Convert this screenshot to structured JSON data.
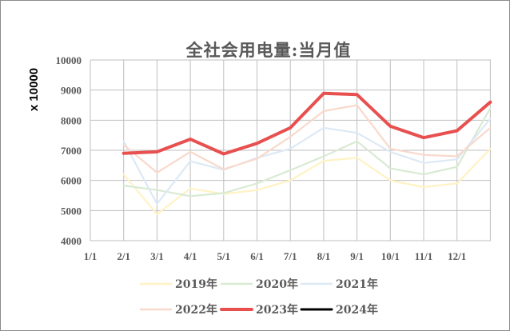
{
  "chart_data": {
    "type": "line",
    "title": "全社会用电量:当月值",
    "ylabel": "x 10000",
    "xlabel": "",
    "categories": [
      "1/1",
      "2/1",
      "3/1",
      "4/1",
      "5/1",
      "6/1",
      "7/1",
      "8/1",
      "9/1",
      "10/1",
      "11/1",
      "12/1"
    ],
    "yticks": [
      "4000",
      "5000",
      "6000",
      "7000",
      "8000",
      "9000",
      "10000"
    ],
    "ylim": [
      4000,
      10000
    ],
    "grid": true,
    "legend_position": "bottom",
    "series": [
      {
        "name": "2019年",
        "color": "#fff2c4",
        "width": 2.2,
        "points": [
          [
            2,
            6200
          ],
          [
            3,
            4880
          ],
          [
            4,
            5730
          ],
          [
            5,
            5550
          ],
          [
            6,
            5680
          ],
          [
            7,
            6000
          ],
          [
            8,
            6650
          ],
          [
            9,
            6750
          ],
          [
            10,
            6000
          ],
          [
            11,
            5780
          ],
          [
            12,
            5900
          ],
          [
            13,
            7050
          ]
        ]
      },
      {
        "name": "2020年",
        "color": "#d9ead3",
        "width": 2.2,
        "points": [
          [
            2,
            5830
          ],
          [
            3,
            5680
          ],
          [
            4,
            5480
          ],
          [
            5,
            5580
          ],
          [
            6,
            5900
          ],
          [
            7,
            6340
          ],
          [
            8,
            6800
          ],
          [
            9,
            7300
          ],
          [
            10,
            6400
          ],
          [
            11,
            6200
          ],
          [
            12,
            6450
          ],
          [
            13,
            8400
          ]
        ]
      },
      {
        "name": "2021年",
        "color": "#dde9f5",
        "width": 2.2,
        "points": [
          [
            2,
            7300
          ],
          [
            3,
            5220
          ],
          [
            4,
            6640
          ],
          [
            5,
            6350
          ],
          [
            6,
            6750
          ],
          [
            7,
            7050
          ],
          [
            8,
            7750
          ],
          [
            9,
            7580
          ],
          [
            10,
            6950
          ],
          [
            11,
            6580
          ],
          [
            12,
            6700
          ],
          [
            13,
            8050
          ]
        ]
      },
      {
        "name": "2022年",
        "color": "#f8d9cc",
        "width": 2.2,
        "points": [
          [
            2,
            7180
          ],
          [
            3,
            6260
          ],
          [
            4,
            6950
          ],
          [
            5,
            6370
          ],
          [
            6,
            6720
          ],
          [
            7,
            7450
          ],
          [
            8,
            8300
          ],
          [
            9,
            8500
          ],
          [
            10,
            7050
          ],
          [
            11,
            6850
          ],
          [
            12,
            6800
          ],
          [
            13,
            7750
          ]
        ]
      },
      {
        "name": "2023年",
        "color": "#e85050",
        "width": 4,
        "points": [
          [
            2,
            6900
          ],
          [
            3,
            6950
          ],
          [
            4,
            7370
          ],
          [
            5,
            6880
          ],
          [
            6,
            7230
          ],
          [
            7,
            7750
          ],
          [
            8,
            8890
          ],
          [
            9,
            8850
          ],
          [
            10,
            7800
          ],
          [
            11,
            7420
          ],
          [
            12,
            7650
          ],
          [
            13,
            8600
          ]
        ]
      },
      {
        "name": "2024年",
        "color": "#000000",
        "width": 3,
        "points": []
      }
    ]
  }
}
